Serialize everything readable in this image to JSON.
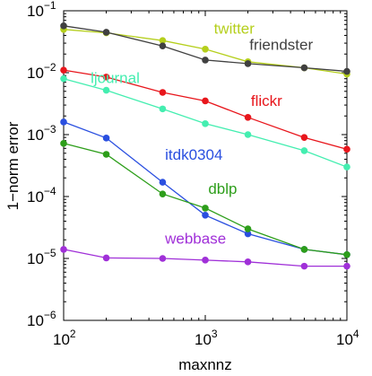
{
  "chart_data": {
    "type": "line",
    "xscale": "log",
    "yscale": "log",
    "xlim": [
      100,
      10000
    ],
    "ylim": [
      1e-06,
      0.1
    ],
    "xlabel": "maxnnz",
    "ylabel": "1−norm error",
    "grid": false,
    "legend": "none",
    "x_ticks": [
      {
        "value": 100,
        "base": "10",
        "exp": "2"
      },
      {
        "value": 1000,
        "base": "10",
        "exp": "3"
      },
      {
        "value": 10000,
        "base": "10",
        "exp": "4"
      }
    ],
    "y_ticks": [
      {
        "value": 1e-06,
        "base": "10",
        "exp": "−6"
      },
      {
        "value": 1e-05,
        "base": "10",
        "exp": "−5"
      },
      {
        "value": 0.0001,
        "base": "10",
        "exp": "−4"
      },
      {
        "value": 0.001,
        "base": "10",
        "exp": "−3"
      },
      {
        "value": 0.01,
        "base": "10",
        "exp": "−2"
      },
      {
        "value": 0.1,
        "base": "10",
        "exp": "−1"
      }
    ],
    "x": [
      100,
      200,
      500,
      1000,
      2000,
      5000,
      10000
    ],
    "series": [
      {
        "name": "twitter",
        "color": "#b5cf1c",
        "values": [
          0.05,
          0.044,
          0.033,
          0.024,
          0.015,
          0.012,
          0.0095
        ]
      },
      {
        "name": "friendster",
        "color": "#404040",
        "values": [
          0.057,
          0.045,
          0.027,
          0.016,
          0.014,
          0.012,
          0.0105
        ]
      },
      {
        "name": "ljournal",
        "color": "#44eeb0",
        "values": [
          0.008,
          0.0052,
          0.0026,
          0.0015,
          0.001,
          0.00055,
          0.0003
        ]
      },
      {
        "name": "flickr",
        "color": "#e8161c",
        "values": [
          0.011,
          0.0085,
          0.0048,
          0.0035,
          0.0019,
          0.0009,
          0.00058
        ]
      },
      {
        "name": "itdk0304",
        "color": "#2a4fe0",
        "values": [
          0.0016,
          0.00088,
          0.00017,
          5e-05,
          2.5e-05,
          1.4e-05,
          1.15e-05
        ]
      },
      {
        "name": "dblp",
        "color": "#2d9e1a",
        "values": [
          0.00072,
          0.00048,
          0.00011,
          6.5e-05,
          3e-05,
          1.4e-05,
          1.15e-05
        ]
      },
      {
        "name": "webbase",
        "color": "#a030d8",
        "values": [
          1.4e-05,
          1.02e-05,
          1e-05,
          9.4e-06,
          8.8e-06,
          7.5e-06,
          7.5e-06
        ]
      }
    ],
    "annotations": [
      {
        "series": "twitter",
        "text": "twitter",
        "x": 1150,
        "y": 0.043
      },
      {
        "series": "friendster",
        "text": "friendster",
        "x": 2050,
        "y": 0.0235
      },
      {
        "series": "ljournal",
        "text": "ljournal",
        "x": 155,
        "y": 0.0068
      },
      {
        "series": "flickr",
        "text": "flickr",
        "x": 2100,
        "y": 0.0029
      },
      {
        "series": "itdk0304",
        "text": "itdk0304",
        "x": 520,
        "y": 0.00039
      },
      {
        "series": "dblp",
        "text": "dblp",
        "x": 1050,
        "y": 0.00011
      },
      {
        "series": "webbase",
        "text": "webbase",
        "x": 520,
        "y": 1.72e-05
      }
    ]
  }
}
